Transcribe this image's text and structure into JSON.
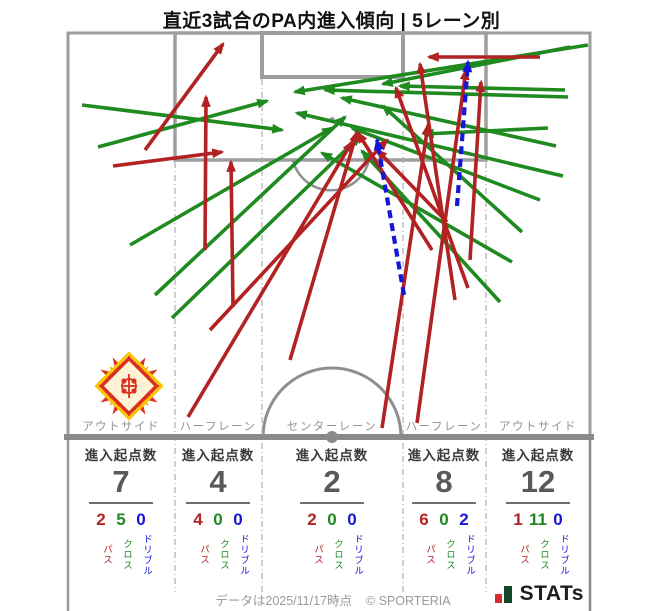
{
  "title": "直近3試合のPA内進入傾向 | 5レーン別",
  "colors": {
    "pass": "#b22222",
    "cross": "#1f8a1f",
    "dribble": "#1616d6",
    "pitch_line": "#9a9a9a",
    "brand_red": "#d22b35",
    "brand_green": "#14462a",
    "emblem_red": "#d93020",
    "emblem_orange": "#f59e00",
    "emblem_gold": "#ffc400",
    "emblem_pale": "#fff3d6"
  },
  "labels": {
    "entry_count": "進入起点数",
    "pass": "パス",
    "cross": "クロス",
    "dribble": "ドリブル"
  },
  "footer": {
    "data_note": "データは2025/11/17時点",
    "copyright": "© SPORTERIA",
    "brand": "STATs"
  },
  "chart_data": {
    "type": "scatter",
    "mark": "arrow",
    "title": "直近3試合のPA内進入傾向 | 5レーン別",
    "lanes": [
      {
        "zone": "アウトサイド",
        "total": 7,
        "pass": 2,
        "cross": 5,
        "dribble": 0
      },
      {
        "zone": "ハーフレーン",
        "total": 4,
        "pass": 4,
        "cross": 0,
        "dribble": 0
      },
      {
        "zone": "センターレーン",
        "total": 2,
        "pass": 2,
        "cross": 0,
        "dribble": 0
      },
      {
        "zone": "ハーフレーン",
        "total": 8,
        "pass": 6,
        "cross": 0,
        "dribble": 2
      },
      {
        "zone": "アウトサイド",
        "total": 12,
        "pass": 1,
        "cross": 11,
        "dribble": 0
      }
    ],
    "arrows": [
      {
        "type": "cross",
        "from": [
          82,
          105
        ],
        "to": [
          282,
          130
        ]
      },
      {
        "type": "cross",
        "from": [
          98,
          147
        ],
        "to": [
          267,
          101
        ]
      },
      {
        "type": "cross",
        "from": [
          130,
          245
        ],
        "to": [
          332,
          128
        ]
      },
      {
        "type": "cross",
        "from": [
          155,
          295
        ],
        "to": [
          345,
          117
        ]
      },
      {
        "type": "cross",
        "from": [
          172,
          318
        ],
        "to": [
          360,
          136
        ]
      },
      {
        "type": "cross",
        "from": [
          588,
          45
        ],
        "to": [
          295,
          92
        ]
      },
      {
        "type": "cross",
        "from": [
          570,
          47
        ],
        "to": [
          383,
          84
        ]
      },
      {
        "type": "cross",
        "from": [
          565,
          90
        ],
        "to": [
          400,
          86
        ]
      },
      {
        "type": "cross",
        "from": [
          568,
          97
        ],
        "to": [
          325,
          90
        ]
      },
      {
        "type": "cross",
        "from": [
          556,
          146
        ],
        "to": [
          342,
          98
        ]
      },
      {
        "type": "cross",
        "from": [
          563,
          176
        ],
        "to": [
          297,
          113
        ]
      },
      {
        "type": "cross",
        "from": [
          540,
          200
        ],
        "to": [
          352,
          128
        ]
      },
      {
        "type": "cross",
        "from": [
          522,
          232
        ],
        "to": [
          383,
          106
        ]
      },
      {
        "type": "cross",
        "from": [
          512,
          262
        ],
        "to": [
          322,
          153
        ]
      },
      {
        "type": "cross",
        "from": [
          548,
          128
        ],
        "to": [
          424,
          134
        ]
      },
      {
        "type": "cross",
        "from": [
          500,
          302
        ],
        "to": [
          362,
          151
        ]
      },
      {
        "type": "pass",
        "from": [
          145,
          150
        ],
        "to": [
          223,
          44
        ]
      },
      {
        "type": "pass",
        "from": [
          113,
          166
        ],
        "to": [
          222,
          152
        ]
      },
      {
        "type": "pass",
        "from": [
          205,
          250
        ],
        "to": [
          206,
          97
        ]
      },
      {
        "type": "pass",
        "from": [
          233,
          307
        ],
        "to": [
          231,
          162
        ]
      },
      {
        "type": "pass",
        "from": [
          188,
          417
        ],
        "to": [
          352,
          142
        ]
      },
      {
        "type": "pass",
        "from": [
          210,
          330
        ],
        "to": [
          387,
          140
        ]
      },
      {
        "type": "pass",
        "from": [
          290,
          360
        ],
        "to": [
          357,
          132
        ]
      },
      {
        "type": "pass",
        "from": [
          382,
          428
        ],
        "to": [
          428,
          125
        ]
      },
      {
        "type": "pass",
        "from": [
          417,
          423
        ],
        "to": [
          466,
          70
        ]
      },
      {
        "type": "pass",
        "from": [
          455,
          300
        ],
        "to": [
          420,
          64
        ]
      },
      {
        "type": "pass",
        "from": [
          470,
          260
        ],
        "to": [
          481,
          82
        ]
      },
      {
        "type": "pass",
        "from": [
          432,
          250
        ],
        "to": [
          358,
          133
        ]
      },
      {
        "type": "pass",
        "from": [
          447,
          222
        ],
        "to": [
          377,
          150
        ]
      },
      {
        "type": "pass",
        "from": [
          468,
          288
        ],
        "to": [
          396,
          88
        ]
      },
      {
        "type": "pass",
        "from": [
          540,
          57
        ],
        "to": [
          429,
          57
        ]
      },
      {
        "type": "dribble",
        "from": [
          457,
          206
        ],
        "to": [
          468,
          62
        ]
      },
      {
        "type": "dribble",
        "from": [
          404,
          295
        ],
        "to": [
          377,
          140
        ]
      }
    ]
  }
}
